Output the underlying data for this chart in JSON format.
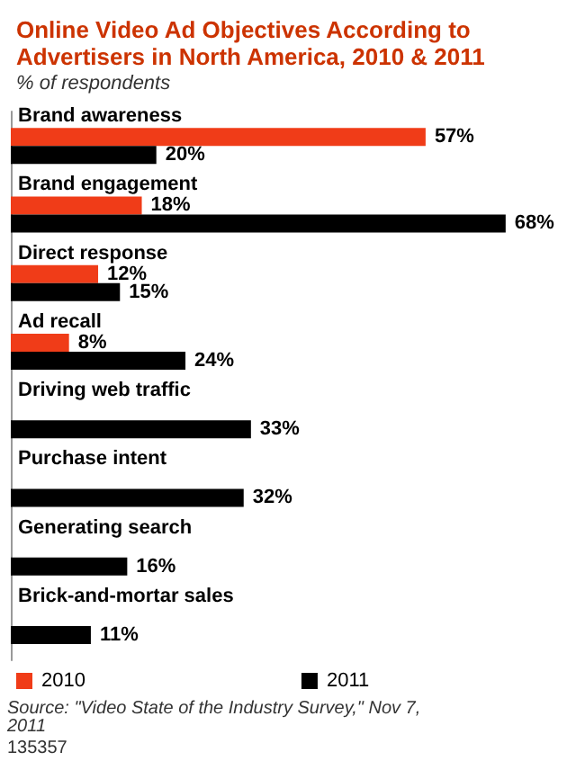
{
  "chart_data": {
    "type": "bar",
    "orientation": "horizontal",
    "title": "Online Video Ad Objectives According to Advertisers in North America, 2010 & 2011",
    "subtitle": "% of respondents",
    "categories": [
      "Brand awareness",
      "Brand engagement",
      "Direct response",
      "Ad recall",
      "Driving web traffic",
      "Purchase intent",
      "Generating search",
      "Brick-and-mortar sales"
    ],
    "series": [
      {
        "name": "2010",
        "color": "#f03c18",
        "values": [
          57,
          18,
          12,
          8,
          null,
          null,
          null,
          null
        ],
        "value_labels": [
          "57%",
          "18%",
          "12%",
          "8%",
          null,
          null,
          null,
          null
        ]
      },
      {
        "name": "2011",
        "color": "#000000",
        "values": [
          20,
          68,
          15,
          24,
          33,
          32,
          16,
          11
        ],
        "value_labels": [
          "20%",
          "68%",
          "15%",
          "24%",
          "33%",
          "32%",
          "16%",
          "11%"
        ]
      }
    ],
    "legend": "bottom left",
    "annotations": [
      "Source: \"Video State of the Industry Survey,\" Nov 7, 2011",
      "135357"
    ]
  }
}
